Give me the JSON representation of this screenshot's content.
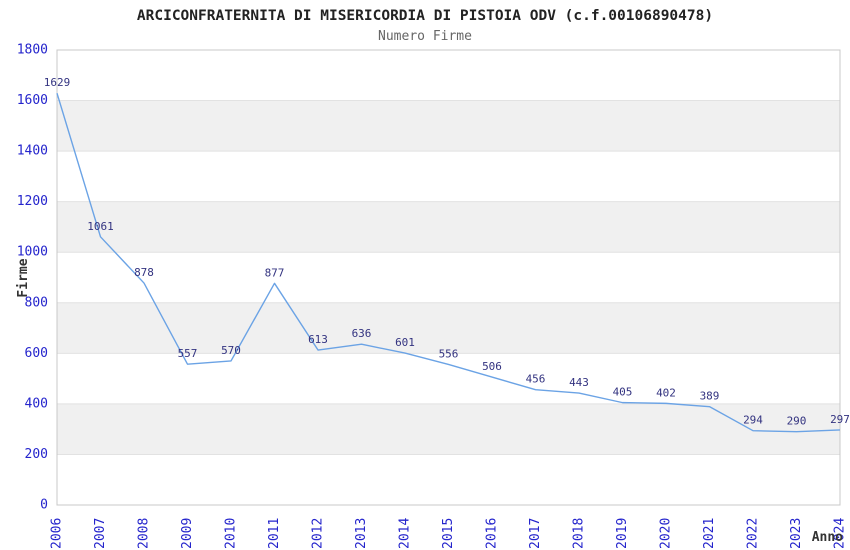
{
  "header": {
    "title": "ARCICONFRATERNITA DI MISERICORDIA DI PISTOIA ODV (c.f.00106890478)",
    "subtitle": "Numero Firme"
  },
  "chart_data": {
    "type": "line",
    "title": "ARCICONFRATERNITA DI MISERICORDIA DI PISTOIA ODV (c.f.00106890478)",
    "subtitle": "Numero Firme",
    "xlabel": "Anno",
    "ylabel": "Firme",
    "categories": [
      "2006",
      "2007",
      "2008",
      "2009",
      "2010",
      "2011",
      "2012",
      "2013",
      "2014",
      "2015",
      "2016",
      "2017",
      "2018",
      "2019",
      "2020",
      "2021",
      "2022",
      "2023",
      "2024"
    ],
    "values": [
      1629,
      1061,
      878,
      557,
      570,
      877,
      613,
      636,
      601,
      556,
      506,
      456,
      443,
      405,
      402,
      389,
      294,
      290,
      297
    ],
    "ylim": [
      0,
      1800
    ],
    "ytick_step": 200,
    "grid": "horizontal-bands-alternating",
    "legend": "none",
    "markers": "none",
    "data_labels": "above-points",
    "colors": {
      "line": "#6ba3e5",
      "tick_label": "#2424cc",
      "value_label": "#333380",
      "band": "#f0f0f0",
      "grid_line": "#e2e2e2",
      "border": "#c8c8c8",
      "title": "#222222",
      "subtitle": "#666666",
      "axis_label": "#333333",
      "background": "#ffffff"
    }
  }
}
